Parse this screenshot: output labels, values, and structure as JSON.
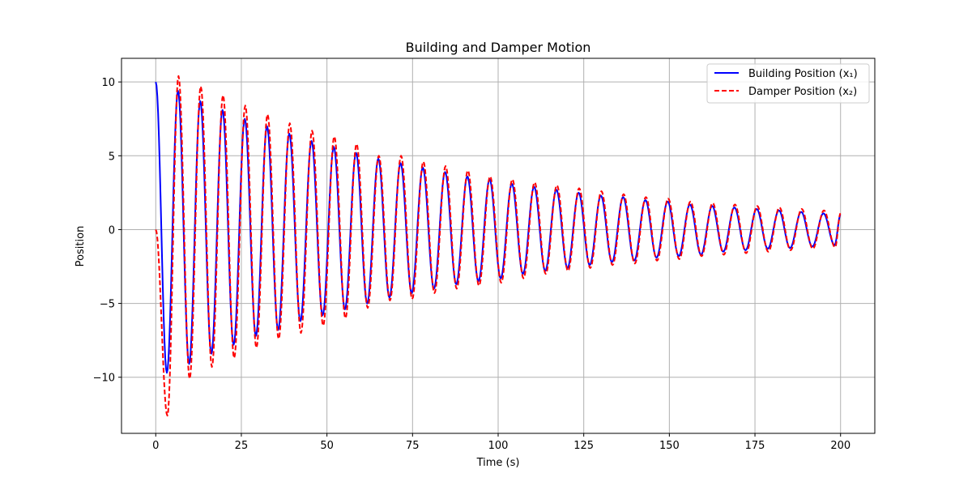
{
  "chart_data": {
    "type": "line",
    "title": "Building and Damper Motion",
    "xlabel": "Time (s)",
    "ylabel": "Position",
    "xlim": [
      -10,
      210
    ],
    "ylim": [
      -13.8,
      11.6
    ],
    "xticks": [
      0,
      25,
      50,
      75,
      100,
      125,
      150,
      175,
      200
    ],
    "yticks": [
      10,
      5,
      0,
      -5,
      -10
    ],
    "xtick_labels": [
      "0",
      "25",
      "50",
      "75",
      "100",
      "125",
      "150",
      "175",
      "200"
    ],
    "ytick_labels": [
      "10",
      "5",
      "0",
      "−5",
      "−10"
    ],
    "grid": true,
    "legend_position": "top-right",
    "series": [
      {
        "name": "Building Position (x₁)",
        "color": "#0000ff",
        "linestyle": "solid",
        "x": [
          0,
          3.25,
          6.5,
          9.75,
          13.0,
          16.25,
          19.5,
          22.75,
          26.0,
          29.25,
          32.5,
          35.75,
          39.0,
          42.25,
          45.5,
          48.75,
          52.0,
          55.25,
          58.5,
          61.75,
          65.0,
          68.25,
          71.5,
          74.75,
          78.0,
          81.25,
          84.5,
          87.75,
          91.0,
          94.25,
          97.5,
          100.75,
          104.0,
          107.25,
          110.5,
          113.75,
          117.0,
          120.25,
          123.5,
          126.75,
          130.0,
          133.25,
          136.5,
          139.75,
          143.0,
          146.25,
          149.5,
          152.75,
          156.0,
          159.25,
          162.5,
          165.75,
          169.0,
          172.25,
          175.5,
          178.75,
          182.0,
          185.25,
          188.5,
          191.75,
          195.0,
          198.25,
          200
        ],
        "y": [
          10.0,
          -9.7,
          9.4,
          -9.1,
          8.7,
          -8.4,
          8.1,
          -7.8,
          7.5,
          -7.2,
          7.0,
          -6.8,
          6.5,
          -6.2,
          6.0,
          -5.8,
          5.6,
          -5.4,
          5.2,
          -5.0,
          4.8,
          -4.6,
          4.5,
          -4.3,
          4.2,
          -4.0,
          3.9,
          -3.7,
          3.6,
          -3.5,
          3.4,
          -3.3,
          3.1,
          -3.0,
          2.9,
          -2.8,
          2.7,
          -2.6,
          2.5,
          -2.4,
          2.3,
          -2.2,
          2.2,
          -2.1,
          2.0,
          -1.9,
          1.9,
          -1.8,
          1.7,
          -1.7,
          1.6,
          -1.5,
          1.5,
          -1.4,
          1.4,
          -1.3,
          1.3,
          -1.25,
          1.2,
          -1.15,
          1.1,
          -1.05,
          1.0
        ]
      },
      {
        "name": "Damper Position (x₂)",
        "color": "#ff0000",
        "linestyle": "dashed",
        "x": [
          0,
          3.4,
          6.65,
          9.9,
          13.15,
          16.4,
          19.65,
          22.9,
          26.15,
          29.4,
          32.65,
          35.9,
          39.15,
          42.4,
          45.65,
          48.9,
          52.15,
          55.4,
          58.65,
          61.9,
          65.15,
          68.4,
          71.65,
          74.9,
          78.15,
          81.4,
          84.65,
          87.9,
          91.15,
          94.4,
          97.65,
          100.9,
          104.15,
          107.4,
          110.65,
          113.9,
          117.15,
          120.4,
          123.65,
          126.9,
          130.15,
          133.4,
          136.65,
          139.9,
          143.15,
          146.4,
          149.65,
          152.9,
          156.15,
          159.4,
          162.65,
          165.9,
          169.15,
          172.4,
          175.65,
          178.9,
          182.15,
          185.4,
          188.65,
          191.9,
          195.15,
          198.4,
          200
        ],
        "y": [
          0.0,
          -12.6,
          10.4,
          -10.1,
          9.7,
          -9.3,
          9.1,
          -8.7,
          8.4,
          -8.0,
          7.8,
          -7.4,
          7.2,
          -7.0,
          6.7,
          -6.5,
          6.3,
          -6.0,
          5.8,
          -5.3,
          5.0,
          -4.8,
          5.0,
          -4.7,
          4.6,
          -4.3,
          4.3,
          -4.0,
          4.0,
          -3.8,
          3.6,
          -3.6,
          3.4,
          -3.3,
          3.2,
          -3.0,
          3.0,
          -2.8,
          2.8,
          -2.6,
          2.6,
          -2.4,
          2.4,
          -2.3,
          2.2,
          -2.1,
          2.1,
          -2.0,
          1.9,
          -1.8,
          1.8,
          -1.7,
          1.7,
          -1.6,
          1.6,
          -1.5,
          1.5,
          -1.4,
          1.4,
          -1.3,
          1.3,
          -1.2,
          1.1
        ]
      }
    ]
  }
}
